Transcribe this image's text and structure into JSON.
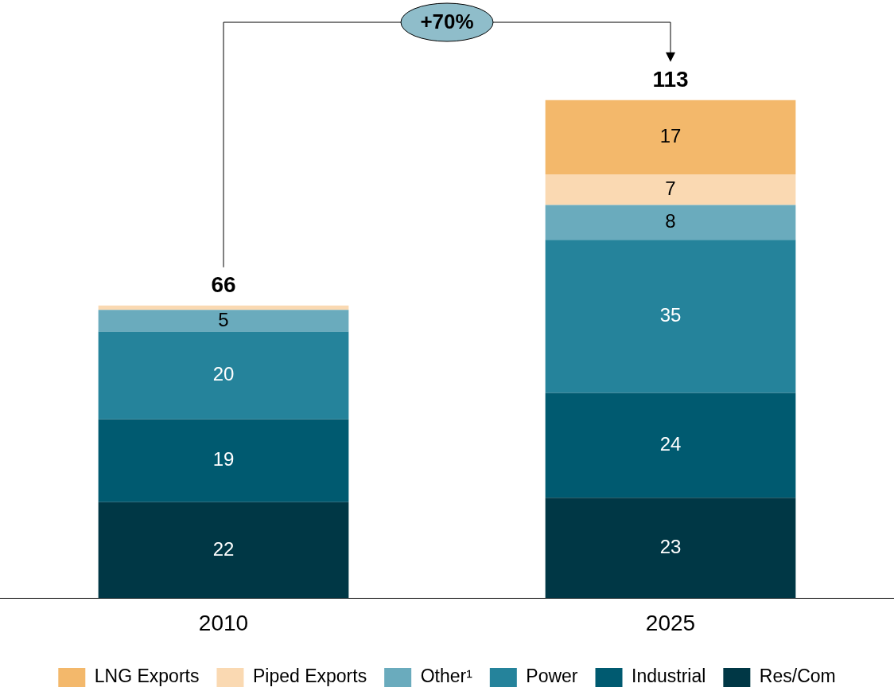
{
  "chart_data": {
    "type": "bar",
    "stacked": true,
    "categories": [
      "2010",
      "2025"
    ],
    "series": [
      {
        "name": "Res/Com",
        "color": "#003745",
        "values": [
          22,
          23
        ],
        "value_labels": [
          "22",
          "23"
        ]
      },
      {
        "name": "Industrial",
        "color": "#005a70",
        "values": [
          19,
          24
        ],
        "value_labels": [
          "19",
          "24"
        ]
      },
      {
        "name": "Power",
        "color": "#25839b",
        "values": [
          20,
          35
        ],
        "value_labels": [
          "20",
          "35"
        ]
      },
      {
        "name": "Other¹",
        "color": "#6aabbd",
        "values": [
          5,
          8
        ],
        "value_labels": [
          "5",
          "8"
        ]
      },
      {
        "name": "Piped Exports",
        "color": "#fad9b2",
        "values": [
          1,
          7
        ],
        "value_labels": [
          null,
          "7"
        ]
      },
      {
        "name": "LNG Exports",
        "color": "#f3b86b",
        "values": [
          null,
          17
        ],
        "value_labels": [
          null,
          "17"
        ]
      }
    ],
    "totals": [
      "66",
      "113"
    ],
    "annotations": [
      "+70%"
    ],
    "legend": "bottom",
    "tick_labels": "x",
    "grid": false
  }
}
